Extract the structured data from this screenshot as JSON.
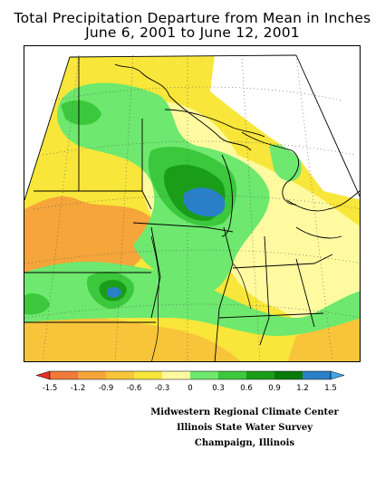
{
  "title": {
    "line1": "Total Precipitation Departure from Mean in Inches",
    "line2": "June 6, 2001 to June 12, 2001"
  },
  "legend": {
    "ticks": [
      "-1.5",
      "-1.2",
      "-0.9",
      "-0.6",
      "-0.3",
      "0",
      "0.3",
      "0.6",
      "0.9",
      "1.2",
      "1.5"
    ],
    "colors": [
      "#e8302a",
      "#f07a3a",
      "#f5a53a",
      "#f8c43a",
      "#f8e63a",
      "#fffaa0",
      "#6ee86e",
      "#3cc83c",
      "#1a9e1a",
      "#0a7a0a",
      "#2a80c8",
      "#40a8e8"
    ]
  },
  "credits": {
    "line1": "Midwestern Regional Climate Center",
    "line2": "Illinois State Water Survey",
    "line3": "Champaign, Illinois"
  }
}
